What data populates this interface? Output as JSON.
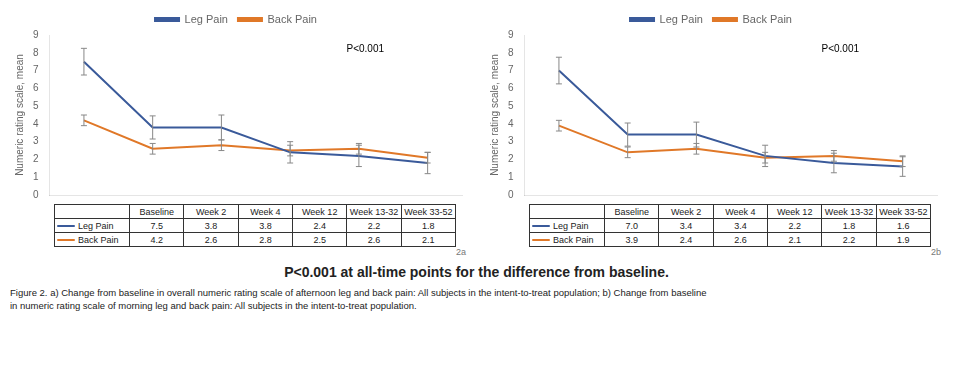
{
  "title": "P<0.001 at all-time points for the difference from baseline.",
  "caption": [
    "Figure 2. a) Change from baseline in overall numeric rating scale of afternoon leg and back pain: All subjects in the intent-to-treat population; b) Change from baseline",
    "in numeric rating scale of morning leg and back pain: All subjects in the intent-to-treat population."
  ],
  "chart_data": [
    {
      "type": "line",
      "panel_label": "2a",
      "ylabel": "Numeric rating scale, mean",
      "categories": [
        "Baseline",
        "Week 2",
        "Week 4",
        "Week 12",
        "Week 13-32",
        "Week 33-52"
      ],
      "series": [
        {
          "name": "Leg Pain",
          "color": "#3a5a9a",
          "values": [
            7.5,
            3.8,
            3.8,
            2.4,
            2.2,
            1.8
          ],
          "errors": [
            0.75,
            0.65,
            0.7,
            0.6,
            0.6,
            0.6
          ],
          "value_labels": [
            "7.5",
            "3.8",
            "3.8",
            "2.4",
            "2.2",
            "1.8"
          ]
        },
        {
          "name": "Back Pain",
          "color": "#e07828",
          "values": [
            4.2,
            2.6,
            2.8,
            2.5,
            2.6,
            2.1
          ],
          "errors": [
            0.3,
            0.3,
            0.3,
            0.3,
            0.3,
            0.3
          ],
          "value_labels": [
            "4.2",
            "2.6",
            "2.8",
            "2.5",
            "2.6",
            "2.1"
          ]
        }
      ],
      "ylim": [
        0,
        9
      ],
      "yticks": [
        0,
        1,
        2,
        3,
        4,
        5,
        6,
        7,
        8,
        9
      ],
      "grid": false,
      "legend": "top",
      "tick_labels": "y",
      "annotations": [
        "P<0.001"
      ]
    },
    {
      "type": "line",
      "panel_label": "2b",
      "ylabel": "Numeric rating scale, mean",
      "categories": [
        "Baseline",
        "Week 2",
        "Week 4",
        "Week 12",
        "Week 13-32",
        "Week 33-52"
      ],
      "series": [
        {
          "name": "Leg Pain",
          "color": "#3a5a9a",
          "values": [
            7.0,
            3.4,
            3.4,
            2.2,
            1.8,
            1.6
          ],
          "errors": [
            0.75,
            0.65,
            0.7,
            0.6,
            0.55,
            0.55
          ],
          "value_labels": [
            "7.0",
            "3.4",
            "3.4",
            "2.2",
            "1.8",
            "1.6"
          ]
        },
        {
          "name": "Back Pain",
          "color": "#e07828",
          "values": [
            3.9,
            2.4,
            2.6,
            2.1,
            2.2,
            1.9
          ],
          "errors": [
            0.3,
            0.3,
            0.3,
            0.3,
            0.3,
            0.3
          ],
          "value_labels": [
            "3.9",
            "2.4",
            "2.6",
            "2.1",
            "2.2",
            "1.9"
          ]
        }
      ],
      "ylim": [
        0,
        9
      ],
      "yticks": [
        0,
        1,
        2,
        3,
        4,
        5,
        6,
        7,
        8,
        9
      ],
      "grid": false,
      "legend": "top",
      "tick_labels": "y",
      "annotations": [
        "P<0.001"
      ]
    }
  ]
}
